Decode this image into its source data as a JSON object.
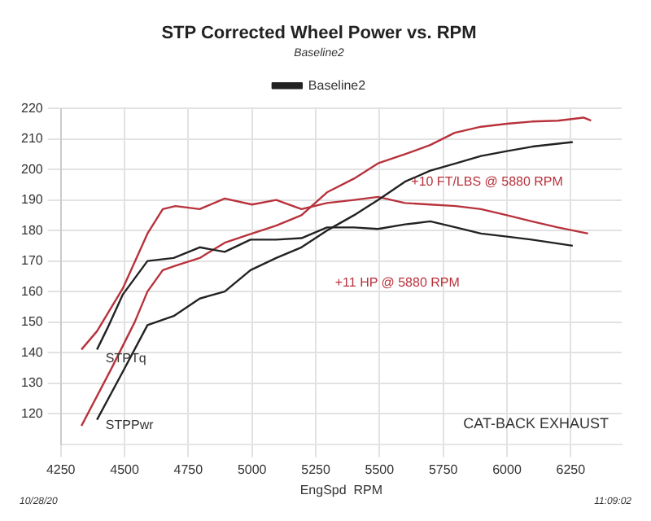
{
  "chart_data": {
    "type": "line",
    "title": "STP Corrected Wheel Power vs. RPM",
    "subtitle": "Baseline2",
    "xlabel": "EngSpd  RPM",
    "xlim": [
      4250,
      6450
    ],
    "xticks": [
      4250,
      4500,
      4750,
      5000,
      5250,
      5500,
      5750,
      6000,
      6250
    ],
    "ylim": [
      110,
      220
    ],
    "yticks": [
      120,
      130,
      140,
      150,
      160,
      170,
      180,
      190,
      200,
      210,
      220
    ],
    "grid": true,
    "legend": "top",
    "marker": "none",
    "line_style": "solid",
    "series": [
      {
        "name": "Baseline2",
        "color": "#222222",
        "x": [
          4392,
          4433,
          4493,
          4590,
          4693,
          4795,
          4893,
          4994,
          5095,
          5194,
          5294,
          5400,
          5494,
          5600,
          5699,
          5800,
          5898,
          6000,
          6097,
          6258
        ],
        "values": [
          141,
          148,
          159,
          170,
          171,
          174.5,
          173,
          177,
          177,
          177.5,
          181,
          181,
          180.5,
          182,
          183,
          181,
          179,
          178,
          177,
          175
        ]
      },
      {
        "color": "#222222",
        "x": [
          4392,
          4493,
          4590,
          4693,
          4795,
          4893,
          4994,
          5095,
          5194,
          5294,
          5400,
          5494,
          5600,
          5699,
          5800,
          5898,
          6000,
          6100,
          6258
        ],
        "values": [
          118,
          133.7,
          149,
          152,
          157.7,
          160,
          167,
          171,
          174.5,
          180,
          185,
          190,
          196,
          199.6,
          202,
          204.4,
          206,
          207.5,
          209
        ]
      },
      {
        "color": "#b8323c",
        "x": [
          4331,
          4392,
          4493,
          4590,
          4650,
          4700,
          4795,
          4893,
          5000,
          5095,
          5194,
          5294,
          5400,
          5494,
          5600,
          5699,
          5800,
          5898,
          6000,
          6097,
          6200,
          6318
        ],
        "values": [
          141,
          147,
          161,
          179,
          187,
          188,
          187,
          190.5,
          188.5,
          190,
          187,
          189,
          190,
          191,
          189,
          188.5,
          188,
          187,
          185,
          183,
          181,
          179
        ]
      },
      {
        "color": "#b8323c",
        "x": [
          4331,
          4450,
          4540,
          4590,
          4650,
          4700,
          4795,
          4893,
          5000,
          5095,
          5194,
          5294,
          5400,
          5494,
          5600,
          5699,
          5795,
          5898,
          6000,
          6097,
          6200,
          6300,
          6330
        ],
        "values": [
          116,
          135,
          150,
          160,
          167,
          168.5,
          171,
          176,
          179,
          181.6,
          185,
          192.5,
          197,
          202,
          205,
          208,
          212,
          214,
          215,
          215.7,
          216,
          217,
          216
        ]
      }
    ],
    "annotations": [
      "+10 FT/LBS @ 5880 RPM",
      "+11 HP @ 5880 RPM",
      "STPTq",
      "STPPwr",
      "CAT-BACK EXHAUST",
      "10/28/20",
      "11:09:02"
    ]
  }
}
